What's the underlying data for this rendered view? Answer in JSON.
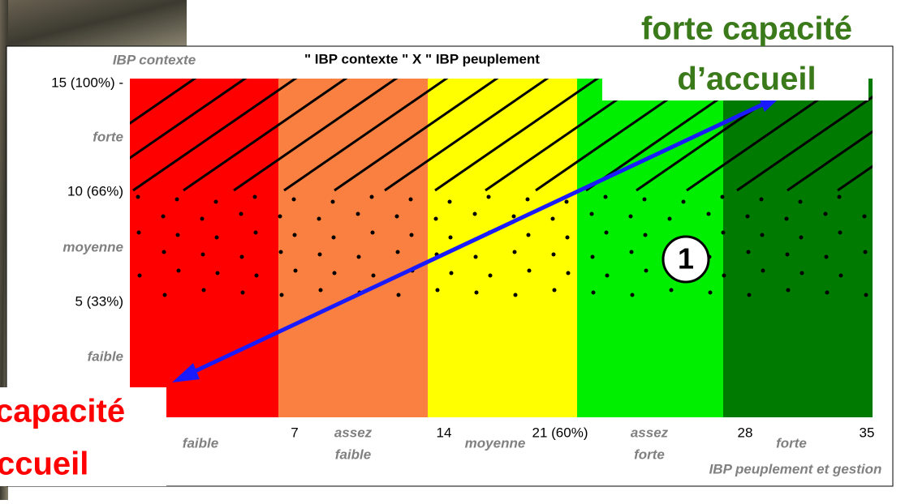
{
  "title": "\" IBP contexte \" X \" IBP peuplement",
  "y_axis": {
    "label": "IBP contexte",
    "ticks": [
      "15 (100%) -",
      "forte",
      "10 (66%)",
      "moyenne",
      "5 (33%)",
      "faible"
    ]
  },
  "x_axis": {
    "label": "IBP peuplement et gestion",
    "ticks": [
      "7",
      "14",
      "21 (60%)",
      "28",
      "35"
    ],
    "categories": [
      [
        "faible"
      ],
      [
        "assez",
        "faible"
      ],
      [
        "moyenne"
      ],
      [
        "assez",
        "forte"
      ],
      [
        "forte"
      ]
    ]
  },
  "top_callout": [
    "forte capacité",
    "d’accueil"
  ],
  "bottom_callout": [
    "capacité",
    "ccueil"
  ],
  "marker": "1"
}
